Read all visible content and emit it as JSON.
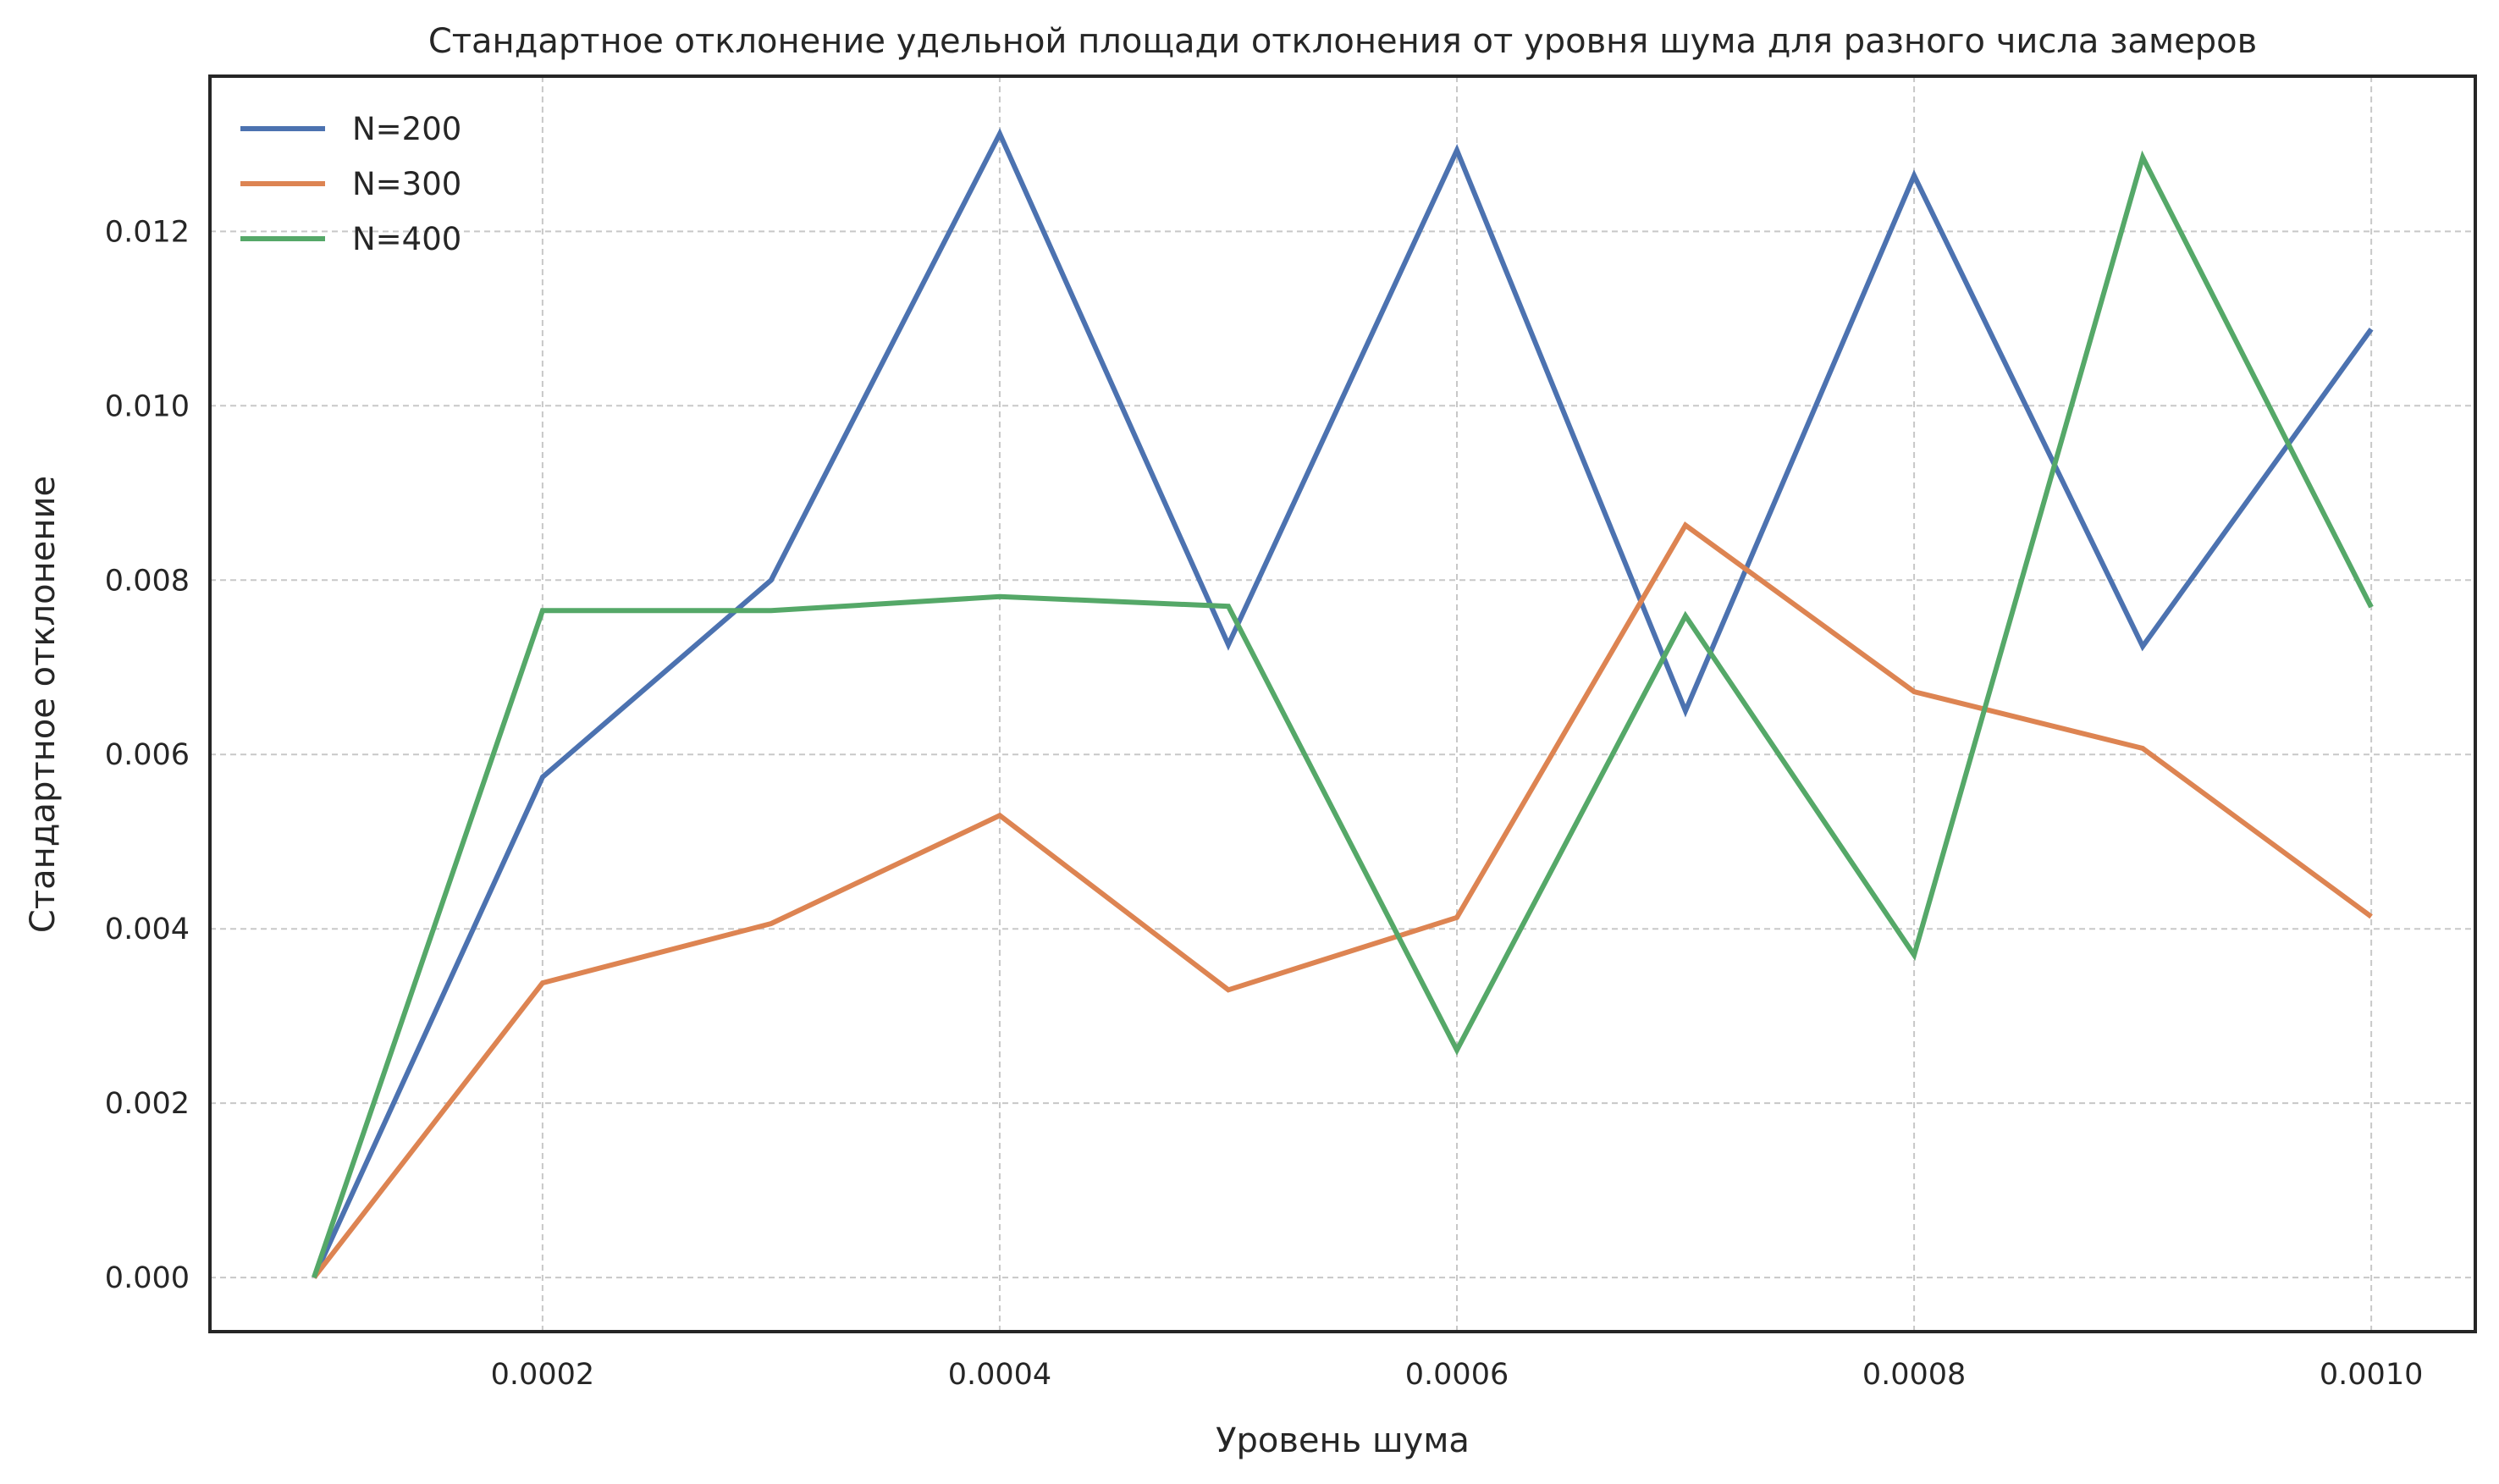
{
  "chart_data": {
    "type": "line",
    "title": "Стандартное отклонение удельной площади отклонения от уровня шума для разного числа замеров",
    "xlabel": "Уровень шума",
    "ylabel": "Стандартное отклонение",
    "xlim": [
      5.45e-05,
      0.0010455
    ],
    "ylim": [
      -0.00062,
      0.01378
    ],
    "xticks": [
      0.0002,
      0.0004,
      0.0006,
      0.0008,
      0.001
    ],
    "xtick_labels": [
      "0.0002",
      "0.0004",
      "0.0006",
      "0.0008",
      "0.0010"
    ],
    "yticks": [
      0.0,
      0.002,
      0.004,
      0.006,
      0.008,
      0.01,
      0.012
    ],
    "ytick_labels": [
      "0.000",
      "0.002",
      "0.004",
      "0.006",
      "0.008",
      "0.010",
      "0.012"
    ],
    "grid": true,
    "legend_position": "top-left",
    "x": [
      0.0001,
      0.0002,
      0.0003,
      0.0004,
      0.0005,
      0.0006,
      0.0007,
      0.0008,
      0.0009,
      0.001
    ],
    "series": [
      {
        "name": "N=200",
        "color": "#4c72b0",
        "values": [
          0.0,
          0.00574,
          0.008,
          0.01312,
          0.00726,
          0.01293,
          0.0065,
          0.01264,
          0.00724,
          0.01088
        ]
      },
      {
        "name": "N=300",
        "color": "#dd8452",
        "values": [
          0.0,
          0.00338,
          0.00406,
          0.0053,
          0.0033,
          0.00413,
          0.00863,
          0.00672,
          0.00607,
          0.00414
        ]
      },
      {
        "name": "N=400",
        "color": "#55a868",
        "values": [
          0.0,
          0.00765,
          0.00765,
          0.00781,
          0.0077,
          0.00261,
          0.00759,
          0.0037,
          0.01285,
          0.00769
        ]
      }
    ]
  }
}
